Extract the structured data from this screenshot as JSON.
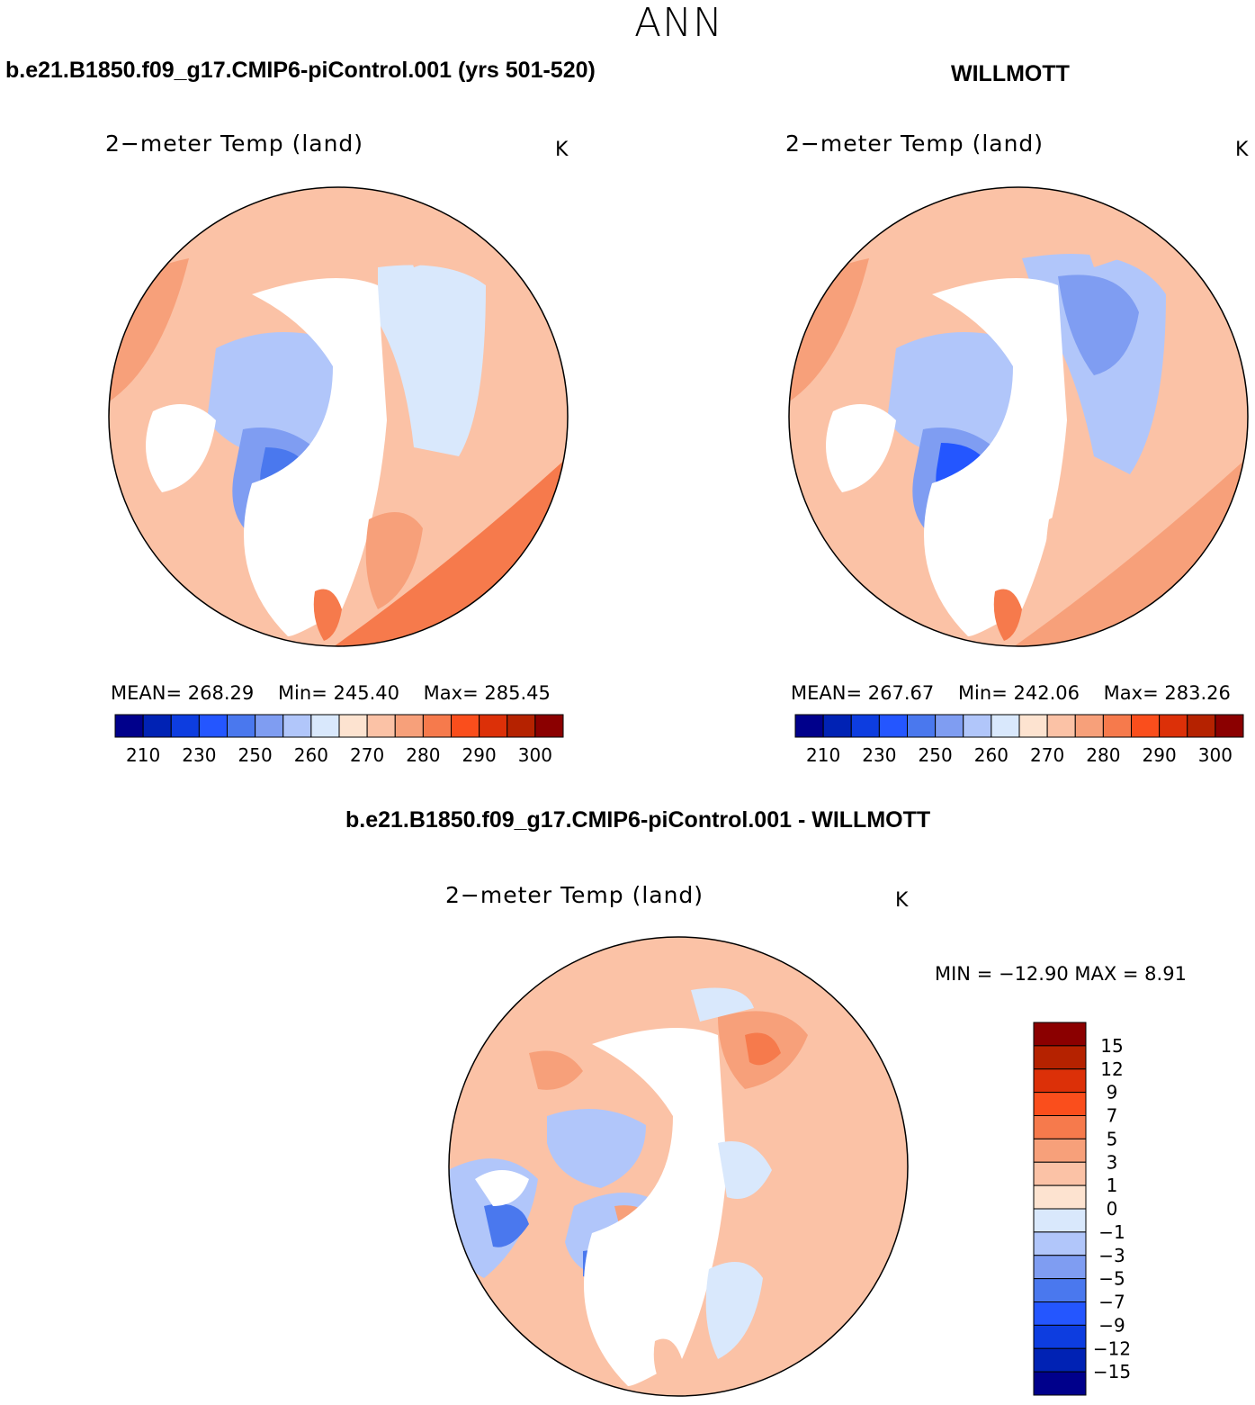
{
  "season": "ANN",
  "panels": [
    {
      "case_title": "b.e21.B1850.f09_g17.CMIP6-piControl.001 (yrs 501-520)",
      "variable": "2−meter Temp (land)",
      "unit": "K",
      "stats": {
        "mean_label": "MEAN=",
        "mean": "268.29",
        "min_label": "Min=",
        "min": "245.40",
        "max_label": "Max=",
        "max": "285.45"
      }
    },
    {
      "case_title": "WILLMOTT",
      "variable": "2−meter Temp (land)",
      "unit": "K",
      "stats": {
        "mean_label": "MEAN=",
        "mean": "267.67",
        "min_label": "Min=",
        "min": "242.06",
        "max_label": "Max=",
        "max": "283.26"
      }
    }
  ],
  "abs_colorbar": {
    "colors": [
      "#00008b",
      "#0022b4",
      "#0d3de0",
      "#2456ff",
      "#4a78ee",
      "#7f9df2",
      "#b1c6fa",
      "#d9e8fc",
      "#fde3d0",
      "#fbc2a6",
      "#f7a07a",
      "#f67a4c",
      "#fa4e1c",
      "#dc3008",
      "#b52200",
      "#8b0000"
    ],
    "ticks": [
      "210",
      "230",
      "250",
      "260",
      "270",
      "280",
      "290",
      "300"
    ]
  },
  "diff_panel": {
    "case_title": "b.e21.B1850.f09_g17.CMIP6-piControl.001 - WILLMOTT",
    "variable": "2−meter Temp (land)",
    "unit": "K",
    "minmax": "MIN = −12.90 MAX =    8.91",
    "colorbar": {
      "colors": [
        "#8b0000",
        "#b52200",
        "#dc3008",
        "#fa4e1c",
        "#f67a4c",
        "#f7a07a",
        "#fbc2a6",
        "#fde3d0",
        "#d9e8fc",
        "#b1c6fa",
        "#7f9df2",
        "#4a78ee",
        "#2456ff",
        "#0d3de0",
        "#0022b4",
        "#00008b"
      ],
      "ticks": [
        "15",
        "12",
        "9",
        "7",
        "5",
        "3",
        "1",
        "0",
        "−1",
        "−3",
        "−5",
        "−7",
        "−9",
        "−12",
        "−15"
      ]
    }
  }
}
